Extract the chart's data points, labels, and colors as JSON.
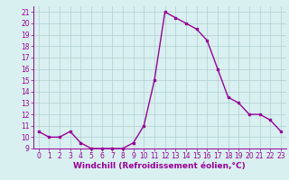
{
  "x": [
    0,
    1,
    2,
    3,
    4,
    5,
    6,
    7,
    8,
    9,
    10,
    11,
    12,
    13,
    14,
    15,
    16,
    17,
    18,
    19,
    20,
    21,
    22,
    23
  ],
  "y": [
    10.5,
    10.0,
    10.0,
    10.5,
    9.5,
    9.0,
    9.0,
    9.0,
    9.0,
    9.5,
    11.0,
    15.0,
    21.0,
    20.5,
    20.0,
    19.5,
    18.5,
    16.0,
    13.5,
    13.0,
    12.0,
    12.0,
    11.5,
    10.5
  ],
  "line_color": "#990099",
  "marker": "s",
  "marker_size": 2,
  "linewidth": 1.0,
  "bg_color": "#d8f0f0",
  "grid_color": "#b0cece",
  "xlabel": "Windchill (Refroidissement éolien,°C)",
  "xlabel_color": "#990099",
  "xlim": [
    -0.5,
    23.5
  ],
  "ylim": [
    9,
    21.5
  ],
  "yticks": [
    9,
    10,
    11,
    12,
    13,
    14,
    15,
    16,
    17,
    18,
    19,
    20,
    21
  ],
  "xticks": [
    0,
    1,
    2,
    3,
    4,
    5,
    6,
    7,
    8,
    9,
    10,
    11,
    12,
    13,
    14,
    15,
    16,
    17,
    18,
    19,
    20,
    21,
    22,
    23
  ],
  "tick_color": "#990099",
  "tick_label_fontsize": 5.5,
  "xlabel_fontsize": 6.5,
  "spine_color": "#990099"
}
